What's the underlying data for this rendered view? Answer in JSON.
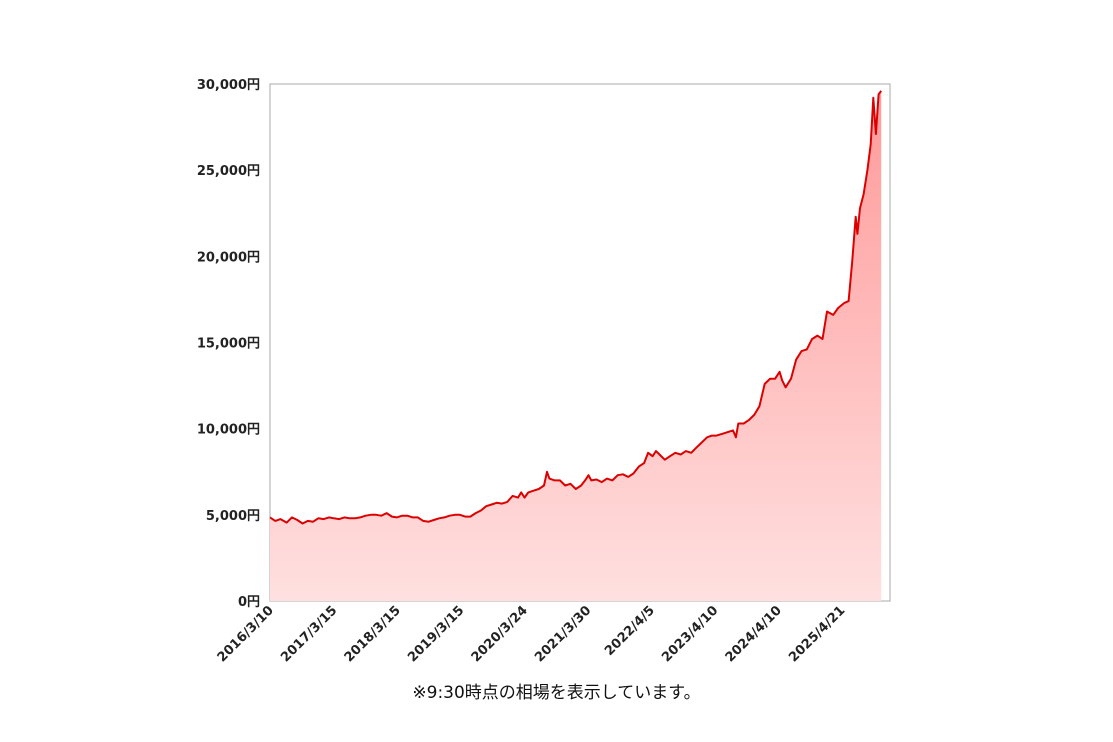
{
  "chart_data": {
    "type": "area",
    "y_unit_suffix": "円",
    "ylim": [
      0,
      30000
    ],
    "y_ticks": [
      0,
      5000,
      10000,
      15000,
      20000,
      25000,
      30000
    ],
    "y_tick_labels": [
      "0円",
      "5,000円",
      "10,000円",
      "15,000円",
      "20,000円",
      "25,000円",
      "30,000円"
    ],
    "x_tick_labels": [
      "2016/3/10",
      "2017/3/15",
      "2018/3/15",
      "2019/3/15",
      "2020/3/24",
      "2021/3/30",
      "2022/4/5",
      "2023/4/10",
      "2024/4/10",
      "2025/4/21"
    ],
    "xlim": [
      "2016-03-10",
      "2026-01-10"
    ],
    "grid": false,
    "line_color": "#dd0000",
    "fill_top_color": "#ff9a9a",
    "fill_bottom_color": "#ffe0e0",
    "points": [
      [
        "2016-03-10",
        4850
      ],
      [
        "2016-04-10",
        4650
      ],
      [
        "2016-05-10",
        4750
      ],
      [
        "2016-06-15",
        4550
      ],
      [
        "2016-07-15",
        4850
      ],
      [
        "2016-08-15",
        4700
      ],
      [
        "2016-09-15",
        4500
      ],
      [
        "2016-10-15",
        4650
      ],
      [
        "2016-11-15",
        4600
      ],
      [
        "2016-12-15",
        4800
      ],
      [
        "2017-01-15",
        4750
      ],
      [
        "2017-02-15",
        4850
      ],
      [
        "2017-03-15",
        4800
      ],
      [
        "2017-04-15",
        4750
      ],
      [
        "2017-05-15",
        4850
      ],
      [
        "2017-06-15",
        4800
      ],
      [
        "2017-07-15",
        4800
      ],
      [
        "2017-08-15",
        4850
      ],
      [
        "2017-09-15",
        4950
      ],
      [
        "2017-10-15",
        5000
      ],
      [
        "2017-11-15",
        5000
      ],
      [
        "2017-12-15",
        4950
      ],
      [
        "2018-01-15",
        5100
      ],
      [
        "2018-02-15",
        4900
      ],
      [
        "2018-03-15",
        4850
      ],
      [
        "2018-04-15",
        4950
      ],
      [
        "2018-05-15",
        4950
      ],
      [
        "2018-06-15",
        4850
      ],
      [
        "2018-07-15",
        4850
      ],
      [
        "2018-08-15",
        4650
      ],
      [
        "2018-09-15",
        4600
      ],
      [
        "2018-10-15",
        4700
      ],
      [
        "2018-11-15",
        4800
      ],
      [
        "2018-12-15",
        4850
      ],
      [
        "2019-01-15",
        4950
      ],
      [
        "2019-02-15",
        5000
      ],
      [
        "2019-03-15",
        5000
      ],
      [
        "2019-04-15",
        4900
      ],
      [
        "2019-05-15",
        4900
      ],
      [
        "2019-06-15",
        5100
      ],
      [
        "2019-07-15",
        5250
      ],
      [
        "2019-08-15",
        5500
      ],
      [
        "2019-09-15",
        5600
      ],
      [
        "2019-10-15",
        5700
      ],
      [
        "2019-11-15",
        5650
      ],
      [
        "2019-12-15",
        5750
      ],
      [
        "2020-01-15",
        6100
      ],
      [
        "2020-02-15",
        6000
      ],
      [
        "2020-03-05",
        6300
      ],
      [
        "2020-03-24",
        6000
      ],
      [
        "2020-04-15",
        6300
      ],
      [
        "2020-05-15",
        6400
      ],
      [
        "2020-06-15",
        6500
      ],
      [
        "2020-07-15",
        6700
      ],
      [
        "2020-08-01",
        7500
      ],
      [
        "2020-08-15",
        7100
      ],
      [
        "2020-09-15",
        7000
      ],
      [
        "2020-10-15",
        7000
      ],
      [
        "2020-11-15",
        6700
      ],
      [
        "2020-12-15",
        6800
      ],
      [
        "2021-01-15",
        6500
      ],
      [
        "2021-02-15",
        6700
      ],
      [
        "2021-03-10",
        7000
      ],
      [
        "2021-03-30",
        7300
      ],
      [
        "2021-04-15",
        7000
      ],
      [
        "2021-05-15",
        7050
      ],
      [
        "2021-06-15",
        6900
      ],
      [
        "2021-07-15",
        7100
      ],
      [
        "2021-08-15",
        7000
      ],
      [
        "2021-09-15",
        7300
      ],
      [
        "2021-10-15",
        7350
      ],
      [
        "2021-11-15",
        7200
      ],
      [
        "2021-12-15",
        7400
      ],
      [
        "2022-01-15",
        7800
      ],
      [
        "2022-02-15",
        8000
      ],
      [
        "2022-03-10",
        8600
      ],
      [
        "2022-04-05",
        8400
      ],
      [
        "2022-04-25",
        8700
      ],
      [
        "2022-05-15",
        8500
      ],
      [
        "2022-06-15",
        8200
      ],
      [
        "2022-07-15",
        8400
      ],
      [
        "2022-08-15",
        8600
      ],
      [
        "2022-09-15",
        8500
      ],
      [
        "2022-10-15",
        8700
      ],
      [
        "2022-11-15",
        8600
      ],
      [
        "2022-12-15",
        8900
      ],
      [
        "2023-01-15",
        9200
      ],
      [
        "2023-02-15",
        9500
      ],
      [
        "2023-03-15",
        9600
      ],
      [
        "2023-04-10",
        9600
      ],
      [
        "2023-05-15",
        9700
      ],
      [
        "2023-06-15",
        9800
      ],
      [
        "2023-07-15",
        9900
      ],
      [
        "2023-08-01",
        9500
      ],
      [
        "2023-08-15",
        10300
      ],
      [
        "2023-09-15",
        10300
      ],
      [
        "2023-10-15",
        10500
      ],
      [
        "2023-11-15",
        10800
      ],
      [
        "2023-12-15",
        11300
      ],
      [
        "2024-01-15",
        12600
      ],
      [
        "2024-02-15",
        12900
      ],
      [
        "2024-03-15",
        12900
      ],
      [
        "2024-04-10",
        13300
      ],
      [
        "2024-04-25",
        12800
      ],
      [
        "2024-05-15",
        12400
      ],
      [
        "2024-06-15",
        12900
      ],
      [
        "2024-07-15",
        14000
      ],
      [
        "2024-08-15",
        14500
      ],
      [
        "2024-09-15",
        14600
      ],
      [
        "2024-10-15",
        15200
      ],
      [
        "2024-11-15",
        15400
      ],
      [
        "2024-12-15",
        15200
      ],
      [
        "2025-01-10",
        16800
      ],
      [
        "2025-02-15",
        16600
      ],
      [
        "2025-03-15",
        17000
      ],
      [
        "2025-04-21",
        17300
      ],
      [
        "2025-05-15",
        17400
      ],
      [
        "2025-06-05",
        19700
      ],
      [
        "2025-06-25",
        22300
      ],
      [
        "2025-07-05",
        21300
      ],
      [
        "2025-07-20",
        22800
      ],
      [
        "2025-08-10",
        23600
      ],
      [
        "2025-09-01",
        25000
      ],
      [
        "2025-09-20",
        26500
      ],
      [
        "2025-10-05",
        29200
      ],
      [
        "2025-10-20",
        27100
      ],
      [
        "2025-11-05",
        29400
      ],
      [
        "2025-11-20",
        29600
      ]
    ]
  },
  "footnote": "※9:30時点の相場を表示しています。"
}
